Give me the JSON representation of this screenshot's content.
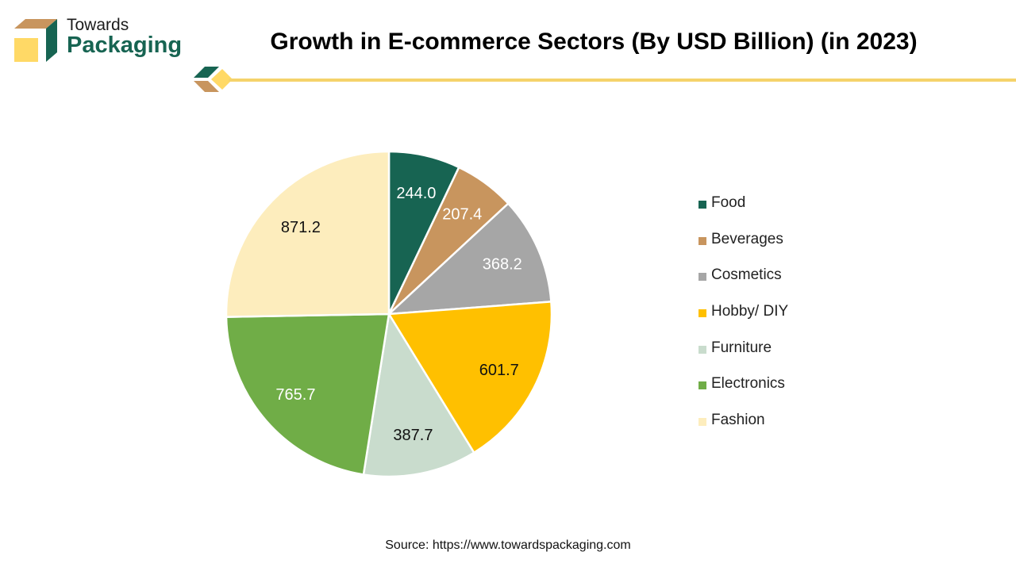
{
  "logo": {
    "line1": "Towards",
    "line2": "Packaging"
  },
  "colors": {
    "accent_green": "#176452",
    "accent_tan": "#c8955e",
    "accent_yellow": "#ffd966",
    "divider_line": "#f5d36b"
  },
  "source": "Source: https://www.towardspackaging.com",
  "chart_data": {
    "type": "pie",
    "title": "Growth in E-commerce Sectors (By USD Billion) (in 2023)",
    "legend_position": "right",
    "categories": [
      "Food",
      "Beverages",
      "Cosmetics",
      "Hobby/ DIY",
      "Furniture",
      "Electronics",
      "Fashion"
    ],
    "values": [
      244.0,
      207.4,
      368.2,
      601.7,
      387.7,
      765.7,
      871.2
    ],
    "data_labels": [
      "244.0",
      "207.4",
      "368.2",
      "601.7",
      "387.7",
      "765.7",
      "871.2"
    ],
    "colors": [
      "#176452",
      "#c8955e",
      "#a6a6a6",
      "#ffc000",
      "#c9dccd",
      "#70ad47",
      "#fdedbd"
    ],
    "label_colors": [
      "#ffffff",
      "#ffffff",
      "#ffffff",
      "#111111",
      "#111111",
      "#ffffff",
      "#111111"
    ]
  }
}
